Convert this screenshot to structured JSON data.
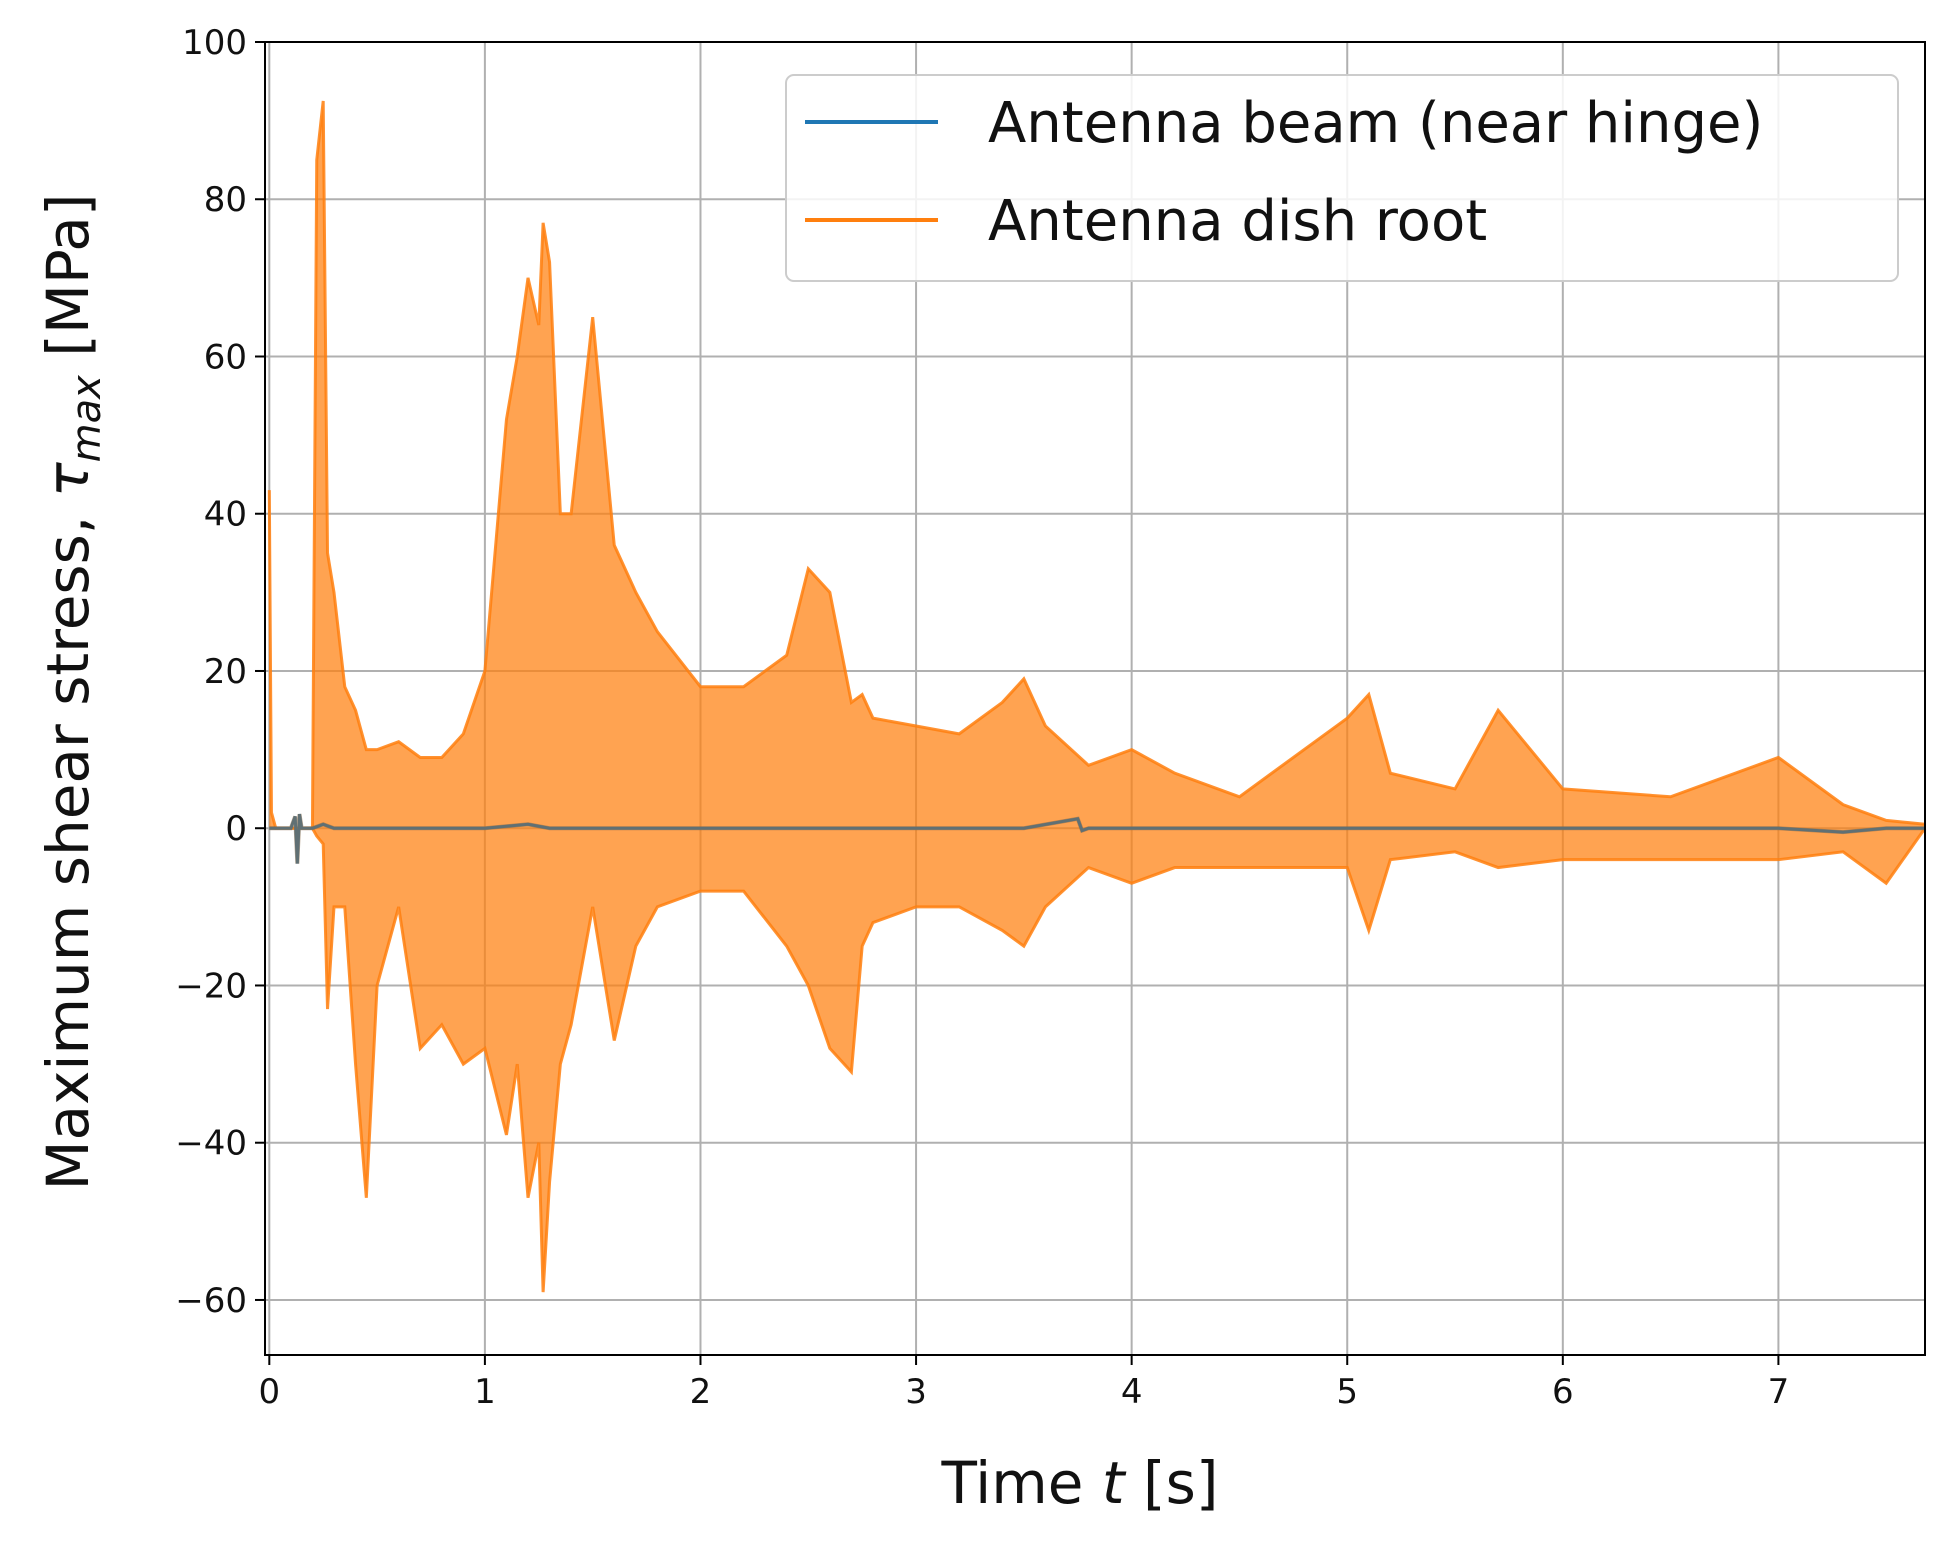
{
  "chart_data": {
    "type": "line",
    "title": "",
    "xlabel": {
      "pre": "Time ",
      "var": "t",
      "post": " [s]"
    },
    "ylabel": {
      "pre": "Maximum shear stress, ",
      "var": "τ",
      "sub": "max",
      "post": " [MPa]"
    },
    "xlim": [
      -0.02,
      7.68
    ],
    "ylim": [
      -67,
      100
    ],
    "xticks": [
      0,
      1,
      2,
      3,
      4,
      5,
      6,
      7
    ],
    "xtick_labels": [
      "0",
      "1",
      "2",
      "3",
      "4",
      "5",
      "6",
      "7"
    ],
    "yticks": [
      -60,
      -40,
      -20,
      0,
      20,
      40,
      60,
      80,
      100
    ],
    "ytick_labels": [
      "−60",
      "−40",
      "−20",
      "0",
      "20",
      "40",
      "60",
      "80",
      "100"
    ],
    "grid": true,
    "legend_position": "top-right",
    "series": [
      {
        "name": "Antenna beam (near hinge)",
        "color": "#1f77b4",
        "x": [
          0,
          0.1,
          0.12,
          0.13,
          0.14,
          0.15,
          0.2,
          0.25,
          0.3,
          0.5,
          1.0,
          1.2,
          1.3,
          1.5,
          2.0,
          2.5,
          3.0,
          3.5,
          3.75,
          3.77,
          3.8,
          4.0,
          5.0,
          6.0,
          7.0,
          7.3,
          7.5,
          7.68
        ],
        "values": [
          0,
          0,
          1.5,
          -4.5,
          1.8,
          0,
          0,
          0.5,
          0,
          0,
          0,
          0.5,
          0,
          0,
          0,
          0,
          0,
          0,
          1.2,
          -0.3,
          0,
          0,
          0,
          0,
          0,
          -0.5,
          0,
          0
        ]
      },
      {
        "name": "Antenna dish root",
        "color": "#ff7f0e",
        "x": [
          0,
          0.01,
          0.03,
          0.1,
          0.2,
          0.22,
          0.25,
          0.27,
          0.3,
          0.35,
          0.4,
          0.45,
          0.5,
          0.6,
          0.7,
          0.8,
          0.9,
          1.0,
          1.1,
          1.15,
          1.2,
          1.25,
          1.27,
          1.3,
          1.35,
          1.4,
          1.5,
          1.6,
          1.7,
          1.8,
          2.0,
          2.2,
          2.4,
          2.5,
          2.6,
          2.7,
          2.75,
          2.8,
          3.0,
          3.2,
          3.4,
          3.5,
          3.6,
          3.8,
          4.0,
          4.2,
          4.5,
          5.0,
          5.1,
          5.2,
          5.5,
          5.7,
          6.0,
          6.5,
          7.0,
          7.3,
          7.5,
          7.68
        ],
        "values": [
          43,
          2,
          0,
          0,
          0,
          85,
          92.5,
          35,
          30,
          18,
          15,
          10,
          10,
          11,
          9,
          9,
          12,
          20,
          52,
          60,
          70,
          64,
          77,
          72,
          40,
          40,
          65,
          36,
          30,
          25,
          18,
          18,
          22,
          33,
          30,
          16,
          17,
          14,
          13,
          12,
          16,
          19,
          13,
          8,
          10,
          7,
          4,
          14,
          17,
          7,
          5,
          15,
          5,
          4,
          9,
          3,
          1,
          0.5
        ],
        "lows": [
          0,
          0,
          0,
          0,
          0,
          -1,
          -2,
          -23,
          -10,
          -10,
          -30,
          -47,
          -20,
          -10,
          -28,
          -25,
          -30,
          -28,
          -39,
          -30,
          -47,
          -40,
          -59,
          -45,
          -30,
          -25,
          -10,
          -27,
          -15,
          -10,
          -8,
          -8,
          -15,
          -20,
          -28,
          -31,
          -15,
          -12,
          -10,
          -10,
          -13,
          -15,
          -10,
          -5,
          -7,
          -5,
          -5,
          -5,
          -13,
          -4,
          -3,
          -5,
          -4,
          -4,
          -4,
          -3,
          -7,
          0
        ]
      }
    ]
  },
  "legend": {
    "items": [
      {
        "label": "Antenna beam (near hinge)",
        "color": "#1f77b4"
      },
      {
        "label": "Antenna dish root",
        "color": "#ff7f0e"
      }
    ]
  }
}
